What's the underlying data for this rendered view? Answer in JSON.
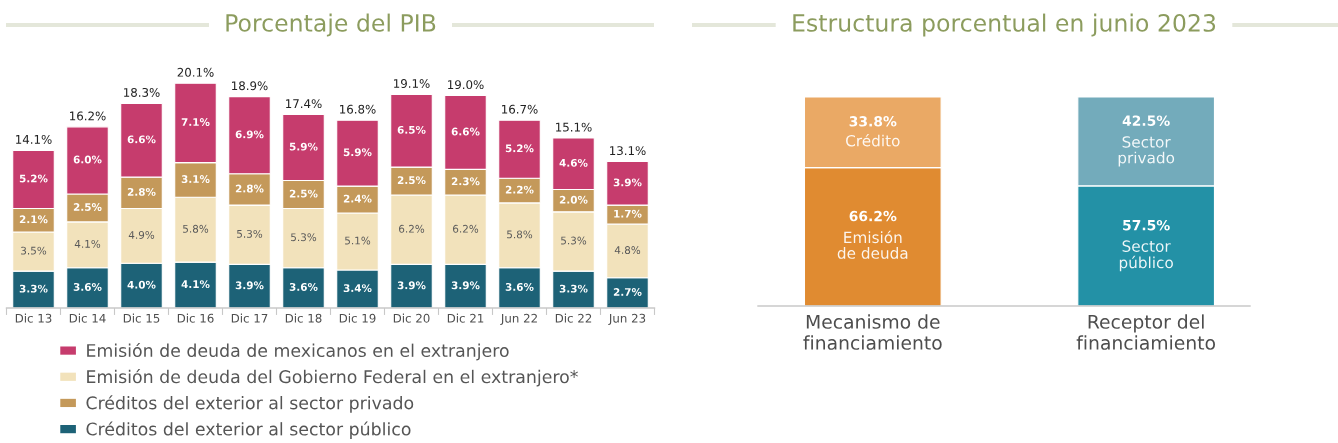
{
  "chart_data": [
    {
      "type": "bar",
      "title": "Porcentaje del PIB",
      "categories": [
        "Dic 13",
        "Dic 14",
        "Dic 15",
        "Dic 16",
        "Dic 17",
        "Dic 18",
        "Dic 19",
        "Dic 20",
        "Dic 21",
        "Jun 22",
        "Dic 22",
        "Jun 23"
      ],
      "stacked": true,
      "tick_labels": "x",
      "legend": "bottom left",
      "series": [
        {
          "name": "Créditos del exterior al sector público",
          "color": "#1d6277",
          "values": [
            3.3,
            3.6,
            4.0,
            4.1,
            3.9,
            3.6,
            3.4,
            3.9,
            3.9,
            3.6,
            3.3,
            2.7
          ],
          "value_labels": [
            "3.3%",
            "3.6%",
            "4.0%",
            "4.1%",
            "3.9%",
            "3.6%",
            "3.4%",
            "3.9%",
            "3.9%",
            "3.6%",
            "3.3%",
            "2.7%"
          ]
        },
        {
          "name": "Emisión de deuda del Gobierno Federal en el extranjero*",
          "color": "#f2e2bb",
          "values": [
            3.5,
            4.1,
            4.9,
            5.8,
            5.3,
            5.3,
            5.1,
            6.2,
            6.2,
            5.8,
            5.3,
            4.8
          ],
          "value_labels": [
            "3.5%",
            "4.1%",
            "4.9%",
            "5.8%",
            "5.3%",
            "5.3%",
            "5.1%",
            "6.2%",
            "6.2%",
            "5.8%",
            "5.3%",
            "4.8%"
          ]
        },
        {
          "name": "Créditos del exterior al sector privado",
          "color": "#c4995a",
          "values": [
            2.1,
            2.5,
            2.8,
            3.1,
            2.8,
            2.5,
            2.4,
            2.5,
            2.3,
            2.2,
            2.0,
            1.7
          ],
          "value_labels": [
            "2.1%",
            "2.5%",
            "2.8%",
            "3.1%",
            "2.8%",
            "2.5%",
            "2.4%",
            "2.5%",
            "2.3%",
            "2.2%",
            "2.0%",
            "1.7%"
          ]
        },
        {
          "name": "Emisión de deuda de mexicanos en el extranjero",
          "color": "#c63c6d",
          "values": [
            5.2,
            6.0,
            6.6,
            7.1,
            6.9,
            5.9,
            5.9,
            6.5,
            6.6,
            5.2,
            4.6,
            3.9
          ],
          "value_labels": [
            "5.2%",
            "6.0%",
            "6.6%",
            "7.1%",
            "6.9%",
            "5.9%",
            "5.9%",
            "6.5%",
            "6.6%",
            "5.2%",
            "4.6%",
            "3.9%"
          ]
        }
      ],
      "totals": [
        "14.1%",
        "16.2%",
        "18.3%",
        "20.1%",
        "18.9%",
        "17.4%",
        "16.8%",
        "19.1%",
        "19.0%",
        "16.7%",
        "15.1%",
        "13.1%"
      ]
    },
    {
      "type": "bar",
      "title": "Estructura porcentual en junio 2023",
      "categories": [
        "Mecanismo de\nfinanciamiento",
        "Receptor del\nfinanciamiento"
      ],
      "stacked": true,
      "ylim": [
        0,
        100
      ],
      "tick_labels": "x",
      "series": [
        {
          "colors": [
            "#e08b31",
            "#2391a6"
          ],
          "values": [
            66.2,
            57.5
          ],
          "value_labels": [
            "66.2%\nEmisión\nde deuda",
            "57.5%\nSector\npúblico"
          ]
        },
        {
          "colors": [
            "#eaa965",
            "#73abbb"
          ],
          "values": [
            33.8,
            42.5
          ],
          "value_labels": [
            "33.8%\nCrédito",
            "42.5%\nSector\nprivado"
          ]
        }
      ]
    }
  ]
}
